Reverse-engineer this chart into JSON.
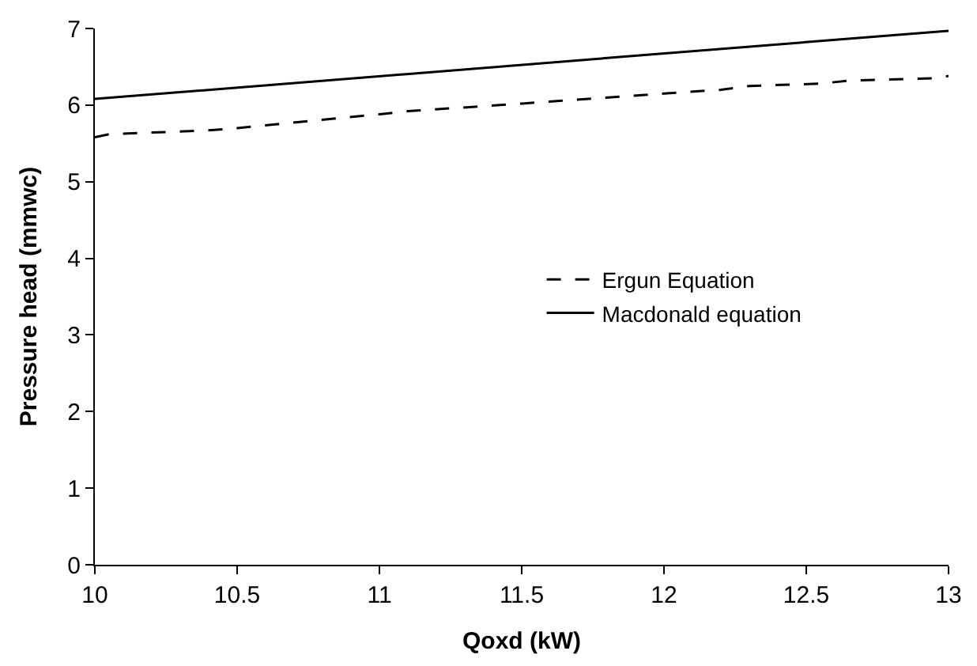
{
  "chart_data": {
    "type": "line",
    "xlabel": "Qoxd (kW)",
    "ylabel": "Pressure head (mmwc)",
    "xlim": [
      10,
      13
    ],
    "xticks": [
      10,
      10.5,
      11,
      11.5,
      12,
      12.5,
      13
    ],
    "ylim": [
      0,
      7
    ],
    "yticks": [
      0,
      1,
      2,
      3,
      4,
      5,
      6,
      7
    ],
    "legend": "right",
    "marker": "none",
    "series": [
      {
        "name": "Ergun Equation",
        "color": "#000000",
        "line_style": "dashed",
        "x": [
          10,
          10.05,
          10.4,
          10.5,
          11.0,
          11.1,
          11.5,
          11.65,
          12.0,
          12.2,
          12.3,
          12.55,
          12.65,
          12.95,
          13
        ],
        "values": [
          5.58,
          5.62,
          5.67,
          5.7,
          5.88,
          5.92,
          6.02,
          6.06,
          6.15,
          6.2,
          6.25,
          6.28,
          6.32,
          6.35,
          6.38
        ]
      },
      {
        "name": "Macdonald equation",
        "color": "#000000",
        "line_style": "solid",
        "x": [
          10,
          13
        ],
        "values": [
          6.08,
          6.97
        ]
      }
    ]
  }
}
